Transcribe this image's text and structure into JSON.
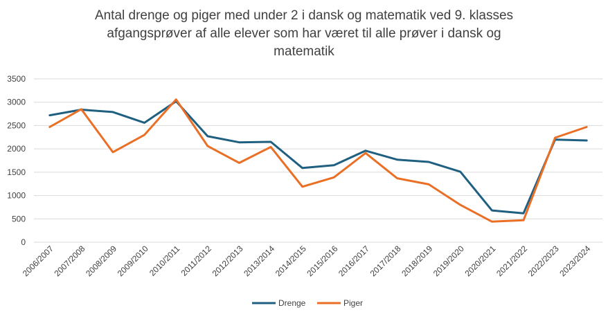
{
  "chart_data": {
    "type": "line",
    "title_lines": [
      "Antal drenge og piger med under 2 i dansk og matematik ved 9. klasses",
      "afgangsprøver af alle elever som har været til alle prøver i dansk og",
      "matematik"
    ],
    "xlabel": "",
    "ylabel": "",
    "ylim": [
      0,
      3500
    ],
    "yticks": [
      0,
      500,
      1000,
      1500,
      2000,
      2500,
      3000,
      3500
    ],
    "grid": true,
    "legend_position": "bottom",
    "categories": [
      "2006/2007",
      "2007/2008",
      "2008/2009",
      "2009/2010",
      "2010/2011",
      "2011/2012",
      "2012/2013",
      "2013/2014",
      "2014/2015",
      "2015/2016",
      "2016/2017",
      "2017/2018",
      "2018/2019",
      "2019/2020",
      "2020/2021",
      "2021/2022",
      "2022/2023",
      "2023/2024"
    ],
    "series": [
      {
        "name": "Drenge",
        "color": "#1f5f80",
        "values": [
          2720,
          2840,
          2790,
          2560,
          3020,
          2270,
          2140,
          2150,
          1590,
          1650,
          1960,
          1770,
          1720,
          1510,
          680,
          620,
          2200,
          2180
        ]
      },
      {
        "name": "Piger",
        "color": "#ea6f24",
        "values": [
          2470,
          2850,
          1930,
          2300,
          3060,
          2060,
          1700,
          2040,
          1190,
          1390,
          1910,
          1370,
          1240,
          800,
          440,
          470,
          2240,
          2470
        ]
      }
    ]
  }
}
